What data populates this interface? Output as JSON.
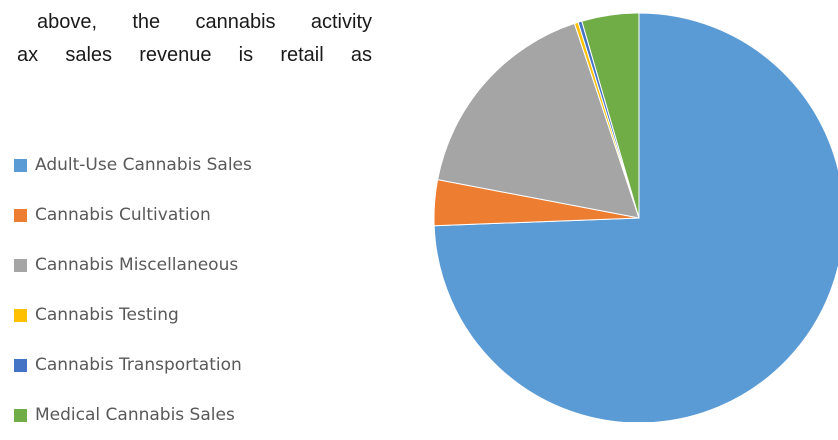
{
  "text_fragment": {
    "line1": "above, the cannabis activity",
    "line2": "ax sales revenue is retail as"
  },
  "chart_data": {
    "type": "pie",
    "title": "",
    "legend_position": "left",
    "slices": [
      {
        "label": "Adult-Use Cannabis Sales",
        "value": 74.4,
        "color": "#5B9BD5"
      },
      {
        "label": "Cannabis Cultivation",
        "value": 3.6,
        "color": "#ED7D31"
      },
      {
        "label": "Cannabis Miscellaneous",
        "value": 16.9,
        "color": "#A5A5A5"
      },
      {
        "label": "Cannabis Testing",
        "value": 0.3,
        "color": "#FFC000"
      },
      {
        "label": "Cannabis Transportation",
        "value": 0.3,
        "color": "#4472C4"
      },
      {
        "label": "Medical Cannabis Sales",
        "value": 4.5,
        "color": "#70AD47"
      }
    ]
  }
}
